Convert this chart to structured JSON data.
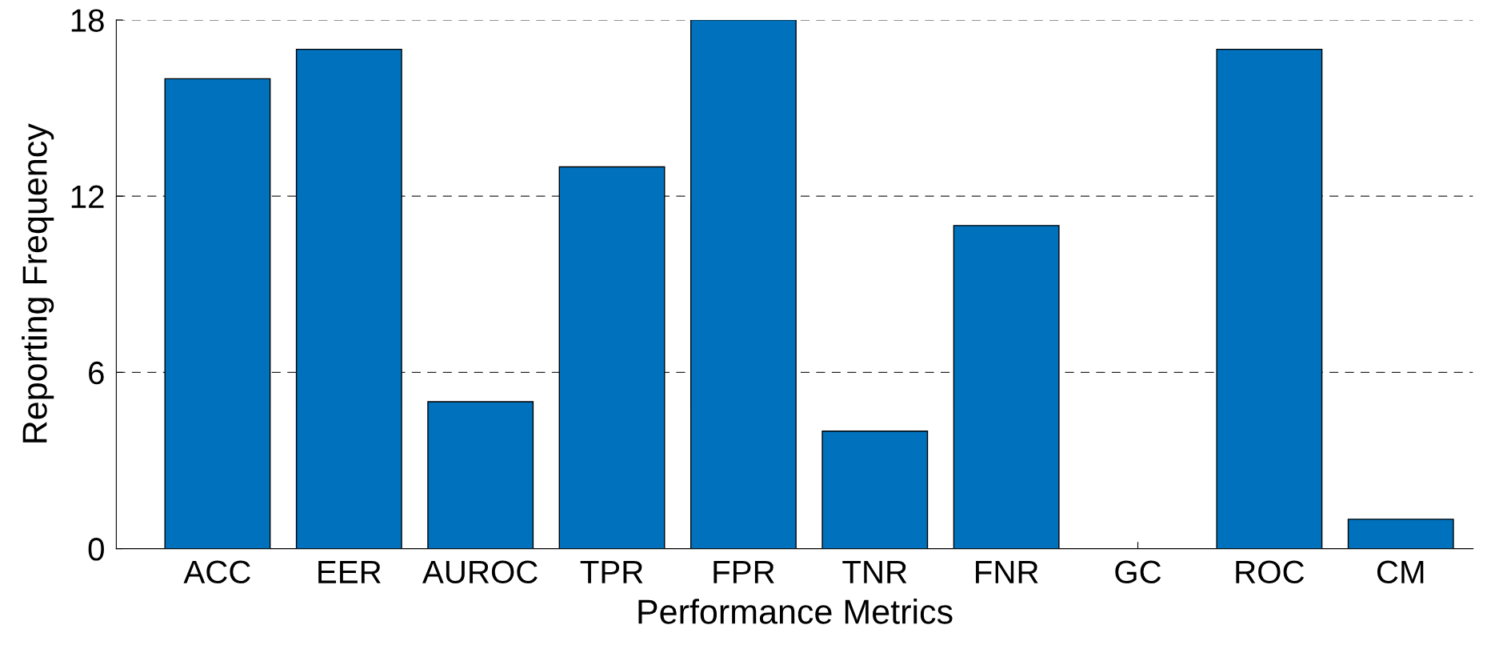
{
  "chart_data": {
    "type": "bar",
    "xlabel": "Performance Metrics",
    "ylabel": "Reporting Frequency",
    "categories": [
      "ACC",
      "EER",
      "AUROC",
      "TPR",
      "FPR",
      "TNR",
      "FNR",
      "GC",
      "ROC",
      "CM"
    ],
    "values": [
      16,
      17,
      5,
      13,
      18,
      4,
      11,
      0,
      17,
      1
    ],
    "color": "#0072bd",
    "ylim": [
      0,
      18
    ],
    "yticks": [
      0,
      6,
      12,
      18
    ],
    "grid": "y"
  }
}
